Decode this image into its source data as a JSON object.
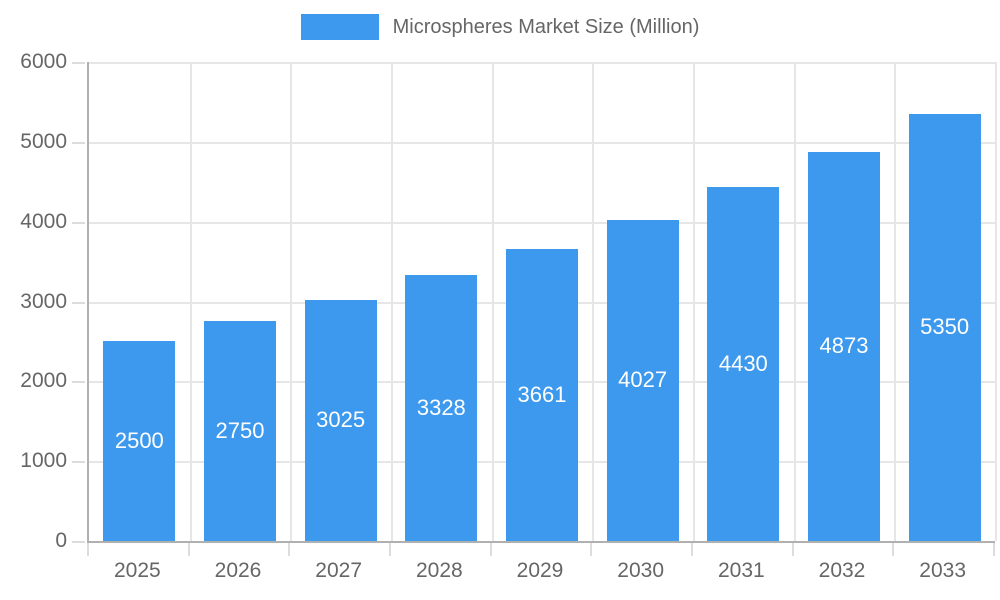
{
  "legend": {
    "label": "Microspheres Market Size (Million)"
  },
  "chart_data": {
    "type": "bar",
    "title": "Microspheres Market Size (Million)",
    "categories": [
      "2025",
      "2026",
      "2027",
      "2028",
      "2029",
      "2030",
      "2031",
      "2032",
      "2033"
    ],
    "series": [
      {
        "name": "Microspheres Market Size (Million)",
        "values": [
          2500,
          2750,
          3025,
          3328,
          3661,
          4027,
          4430,
          4873,
          5350
        ]
      }
    ],
    "xlabel": "",
    "ylabel": "",
    "ylim": [
      0,
      6000
    ],
    "yticks": [
      0,
      1000,
      2000,
      3000,
      4000,
      5000,
      6000
    ],
    "legend_position": "top",
    "grid": true,
    "value_labels": "inside-center",
    "bar_color": "#3D99ED",
    "value_label_color": "#FFFFFF",
    "axis_text_color": "#666666",
    "grid_color": "#E6E6E6",
    "axis_line_color": "#B0B0B0"
  }
}
